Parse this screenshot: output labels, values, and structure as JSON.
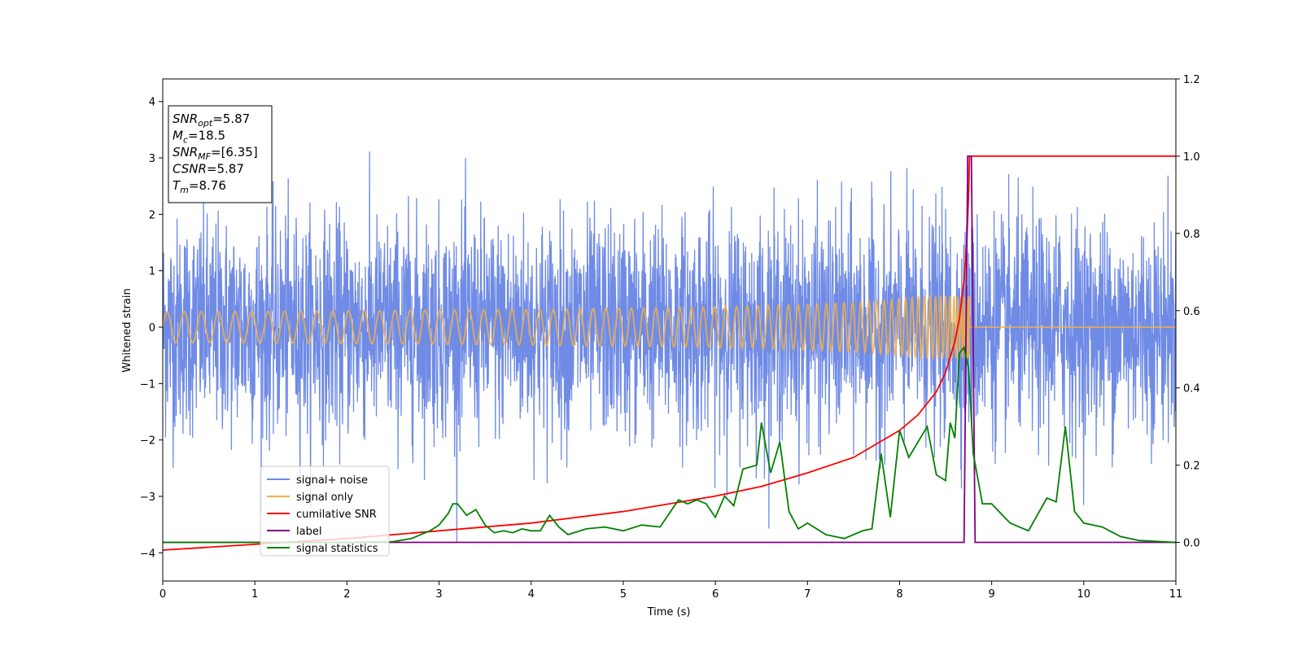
{
  "chart_data": {
    "type": "line",
    "xlabel": "Time (s)",
    "ylabel": "Whitened strain",
    "xlim": [
      0,
      11
    ],
    "ylim_left": [
      -4.5,
      4.4
    ],
    "ylim_right": [
      -0.1,
      1.2
    ],
    "x_ticks": [
      "0",
      "1",
      "2",
      "3",
      "4",
      "5",
      "6",
      "7",
      "8",
      "9",
      "10",
      "11"
    ],
    "y_ticks_left": [
      "−4",
      "−3",
      "−2",
      "−1",
      "0",
      "1",
      "2",
      "3",
      "4"
    ],
    "y_tick_values_left": [
      -4,
      -3,
      -2,
      -1,
      0,
      1,
      2,
      3,
      4
    ],
    "y_ticks_right": [
      "0.0",
      "0.2",
      "0.4",
      "0.6",
      "0.8",
      "1.0",
      "1.2"
    ],
    "y_tick_values_right": [
      0.0,
      0.2,
      0.4,
      0.6,
      0.8,
      1.0,
      1.2
    ],
    "grid": false,
    "legend_position": "lower-left",
    "annotation": {
      "lines": [
        {
          "base": "SNR",
          "sub": "opt",
          "rest": "=5.87"
        },
        {
          "base": "M",
          "sub": "c",
          "rest": "=18.5"
        },
        {
          "base": "SNR",
          "sub": "MF",
          "rest": "=[6.35]"
        },
        {
          "base": "CSNR",
          "sub": "",
          "rest": "=5.87"
        },
        {
          "base": "T",
          "sub": "m",
          "rest": "=8.76"
        }
      ]
    },
    "series": [
      {
        "name": "signal+ noise",
        "axis": "left",
        "color": "#6f8be6",
        "kind": "noise",
        "description_values": {
          "std": 1.0,
          "min": -4.2,
          "max": 3.95,
          "x_start": 0,
          "x_end": 11
        }
      },
      {
        "name": "signal only",
        "axis": "left",
        "color": "#f5b041",
        "kind": "chirp",
        "description_values": {
          "merger_time": 8.76,
          "peak_amplitude": 0.55,
          "x_start": 0,
          "x_end": 11
        }
      },
      {
        "name": "cumilative SNR",
        "axis": "right",
        "color": "#ff0000",
        "points": [
          [
            0,
            -0.02
          ],
          [
            1,
            -0.005
          ],
          [
            2,
            0.01
          ],
          [
            3,
            0.03
          ],
          [
            4,
            0.05
          ],
          [
            5,
            0.08
          ],
          [
            6,
            0.12
          ],
          [
            6.5,
            0.145
          ],
          [
            7,
            0.18
          ],
          [
            7.5,
            0.22
          ],
          [
            8,
            0.29
          ],
          [
            8.2,
            0.33
          ],
          [
            8.4,
            0.39
          ],
          [
            8.5,
            0.44
          ],
          [
            8.6,
            0.52
          ],
          [
            8.65,
            0.58
          ],
          [
            8.7,
            0.68
          ],
          [
            8.73,
            0.78
          ],
          [
            8.75,
            0.9
          ],
          [
            8.76,
            1.0
          ],
          [
            11,
            1.0
          ]
        ]
      },
      {
        "name": "label",
        "axis": "right",
        "color": "#800080",
        "points": [
          [
            0,
            0
          ],
          [
            8.7,
            0
          ],
          [
            8.74,
            1.0
          ],
          [
            8.78,
            1.0
          ],
          [
            8.82,
            0
          ],
          [
            11,
            0
          ]
        ]
      },
      {
        "name": "signal statistics",
        "axis": "right",
        "color": "#008000",
        "points": [
          [
            0,
            0
          ],
          [
            1,
            0
          ],
          [
            2,
            0.0
          ],
          [
            2.5,
            0.002
          ],
          [
            2.7,
            0.01
          ],
          [
            2.9,
            0.03
          ],
          [
            3.0,
            0.045
          ],
          [
            3.1,
            0.075
          ],
          [
            3.15,
            0.1
          ],
          [
            3.2,
            0.1
          ],
          [
            3.3,
            0.07
          ],
          [
            3.4,
            0.085
          ],
          [
            3.5,
            0.045
          ],
          [
            3.6,
            0.025
          ],
          [
            3.7,
            0.03
          ],
          [
            3.8,
            0.025
          ],
          [
            3.9,
            0.035
          ],
          [
            4.0,
            0.03
          ],
          [
            4.1,
            0.03
          ],
          [
            4.2,
            0.07
          ],
          [
            4.3,
            0.04
          ],
          [
            4.4,
            0.02
          ],
          [
            4.6,
            0.035
          ],
          [
            4.8,
            0.04
          ],
          [
            5.0,
            0.03
          ],
          [
            5.2,
            0.045
          ],
          [
            5.4,
            0.04
          ],
          [
            5.6,
            0.11
          ],
          [
            5.7,
            0.1
          ],
          [
            5.8,
            0.11
          ],
          [
            5.9,
            0.1
          ],
          [
            6.0,
            0.065
          ],
          [
            6.1,
            0.12
          ],
          [
            6.2,
            0.095
          ],
          [
            6.3,
            0.19
          ],
          [
            6.45,
            0.2
          ],
          [
            6.5,
            0.31
          ],
          [
            6.6,
            0.18
          ],
          [
            6.7,
            0.26
          ],
          [
            6.8,
            0.08
          ],
          [
            6.9,
            0.035
          ],
          [
            7.0,
            0.05
          ],
          [
            7.2,
            0.02
          ],
          [
            7.4,
            0.01
          ],
          [
            7.6,
            0.03
          ],
          [
            7.7,
            0.035
          ],
          [
            7.8,
            0.23
          ],
          [
            7.9,
            0.065
          ],
          [
            8.0,
            0.29
          ],
          [
            8.1,
            0.22
          ],
          [
            8.3,
            0.3
          ],
          [
            8.4,
            0.175
          ],
          [
            8.5,
            0.16
          ],
          [
            8.55,
            0.31
          ],
          [
            8.6,
            0.27
          ],
          [
            8.65,
            0.49
          ],
          [
            8.7,
            0.505
          ],
          [
            8.75,
            0.45
          ],
          [
            8.8,
            0.23
          ],
          [
            8.9,
            0.1
          ],
          [
            9.0,
            0.1
          ],
          [
            9.2,
            0.05
          ],
          [
            9.4,
            0.03
          ],
          [
            9.6,
            0.115
          ],
          [
            9.7,
            0.105
          ],
          [
            9.8,
            0.3
          ],
          [
            9.9,
            0.08
          ],
          [
            10.0,
            0.05
          ],
          [
            10.2,
            0.04
          ],
          [
            10.4,
            0.015
          ],
          [
            10.6,
            0.005
          ],
          [
            11,
            0
          ]
        ]
      }
    ]
  }
}
